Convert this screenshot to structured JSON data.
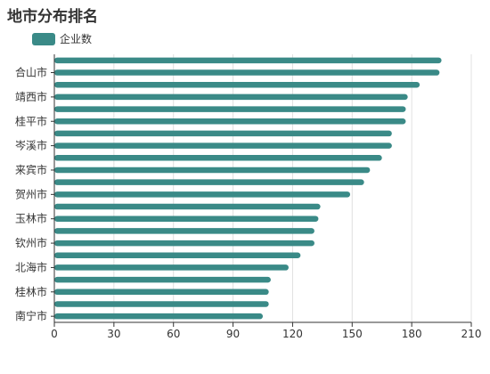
{
  "chart_data": {
    "type": "bar",
    "orientation": "horizontal",
    "title": "地市分布排名",
    "legend": {
      "label": "企业数",
      "position": "top-left"
    },
    "series": [
      {
        "name": "企业数",
        "color": "#3a8a87",
        "values": [
          195,
          194,
          184,
          178,
          177,
          177,
          170,
          170,
          165,
          159,
          156,
          149,
          134,
          133,
          131,
          131,
          124,
          118,
          109,
          108,
          108,
          105
        ]
      }
    ],
    "category_labels_shown": [
      {
        "index": 1,
        "label": "合山市"
      },
      {
        "index": 3,
        "label": "靖西市"
      },
      {
        "index": 5,
        "label": "桂平市"
      },
      {
        "index": 7,
        "label": "岑溪市"
      },
      {
        "index": 9,
        "label": "来宾市"
      },
      {
        "index": 11,
        "label": "贺州市"
      },
      {
        "index": 13,
        "label": "玉林市"
      },
      {
        "index": 15,
        "label": "钦州市"
      },
      {
        "index": 17,
        "label": "北海市"
      },
      {
        "index": 19,
        "label": "桂林市"
      },
      {
        "index": 21,
        "label": "南宁市"
      }
    ],
    "x_ticks": [
      0,
      30,
      60,
      90,
      120,
      150,
      180,
      210
    ],
    "xlim": [
      0,
      210
    ],
    "grid": true
  }
}
